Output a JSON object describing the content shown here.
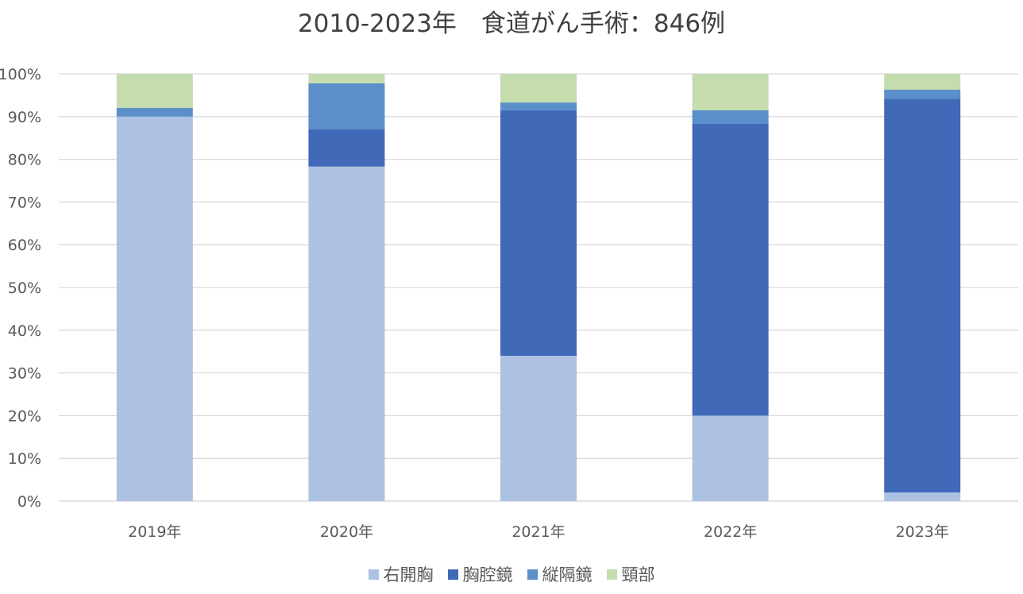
{
  "chart_data": {
    "type": "bar",
    "stacked": true,
    "percent_stacked": true,
    "title": "2010-2023年　食道がん手術：846例",
    "categories": [
      "2019年",
      "2020年",
      "2021年",
      "2022年",
      "2023年"
    ],
    "series": [
      {
        "name": "右開胸",
        "color": "#adc1e2",
        "values": [
          90,
          78.3,
          34,
          20,
          2
        ]
      },
      {
        "name": "胸腔鏡",
        "color": "#4069b8",
        "values": [
          0,
          8.7,
          57.5,
          68.3,
          92.2
        ]
      },
      {
        "name": "縦隔鏡",
        "color": "#5b8fc9",
        "values": [
          2,
          10.8,
          1.8,
          3.2,
          2.1
        ]
      },
      {
        "name": "頸部",
        "color": "#c5dcae",
        "values": [
          8,
          2.2,
          6.7,
          8.5,
          3.7
        ]
      }
    ],
    "ylim": [
      0,
      100
    ],
    "yticks": [
      "0%",
      "10%",
      "20%",
      "30%",
      "40%",
      "50%",
      "60%",
      "70%",
      "80%",
      "90%",
      "100%"
    ],
    "grid": true,
    "legend_position": "bottom",
    "xlabel": "",
    "ylabel": ""
  }
}
